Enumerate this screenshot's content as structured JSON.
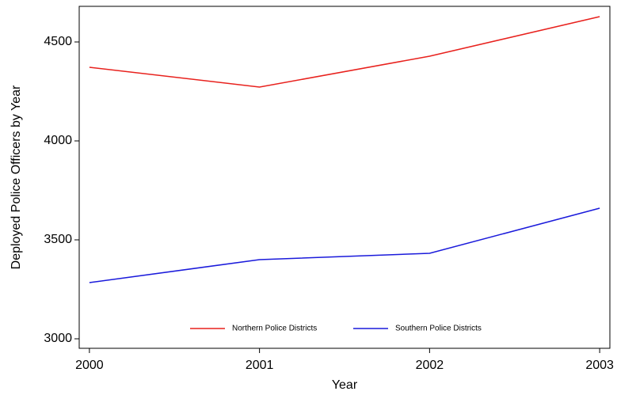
{
  "chart_data": {
    "type": "line",
    "x_label": "Year",
    "y_label": "Deployed Police Officers by Year",
    "x": [
      2000,
      2001,
      2002,
      2003
    ],
    "series": [
      {
        "name": "Northern Police Districts",
        "color": "#e8211d",
        "values": [
          4372,
          4272,
          4428,
          4628
        ]
      },
      {
        "name": "Southern Police Districts",
        "color": "#1a1adb",
        "values": [
          3284,
          3400,
          3432,
          3660
        ]
      }
    ],
    "xlim": [
      1999.94,
      2003.06
    ],
    "xticks": [
      2000,
      2001,
      2002,
      2003
    ],
    "ylim": [
      2952,
      4680
    ],
    "yticks": [
      3000,
      3500,
      4000,
      4500
    ],
    "legend": "bottom",
    "grid": false
  }
}
